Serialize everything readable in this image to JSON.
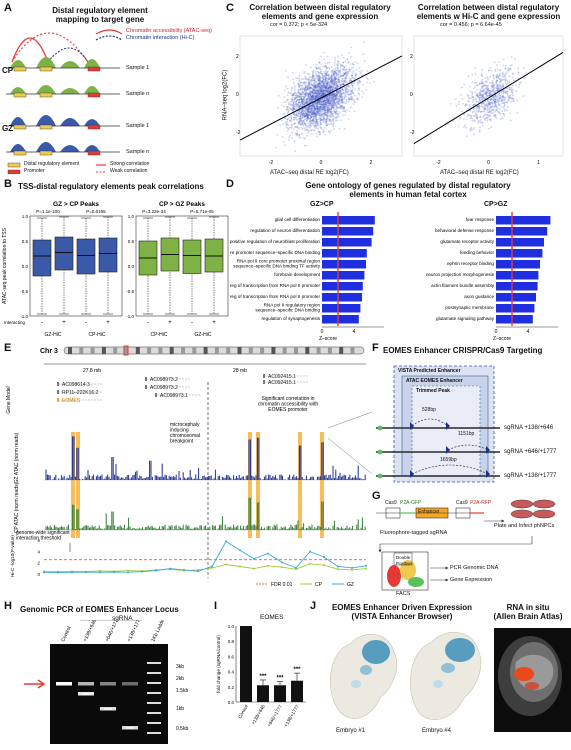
{
  "panel_labels": [
    "A",
    "B",
    "C",
    "D",
    "E",
    "F",
    "G",
    "H",
    "I",
    "J"
  ],
  "panelA": {
    "title": "Distal regulatory element\nmapping to target gene",
    "legend_top": [
      "Chromatin accessibility (ATAC-seq)",
      "Chromatin interaction (Hi-C)"
    ],
    "rows": [
      "CP",
      "GZ"
    ],
    "samples": [
      "Sample 1",
      "Sample n",
      "Sample 1",
      "Sample n"
    ],
    "legend_bottom": [
      "Distal regulatory element",
      "Promoter",
      "Strong correlation",
      "Weak correlation"
    ]
  },
  "panelB": {
    "title": "TSS-distal regulatory elements peak correlations",
    "ylabel": "ATAC-seq peak correlation to TSS",
    "left": {
      "title": "GZ > CP Peaks",
      "pvals": [
        "P=1.1e-100",
        "P=0.0155"
      ],
      "xlabels": [
        "GZ-HiC",
        "CP-HiC"
      ],
      "color": "#3a59a8",
      "boxes": [
        {
          "q1": -0.2,
          "med": 0.2,
          "q3": 0.52,
          "lo": -0.96,
          "hi": 0.96
        },
        {
          "q1": -0.08,
          "med": 0.27,
          "q3": 0.58,
          "lo": -0.96,
          "hi": 0.98
        },
        {
          "q1": -0.16,
          "med": 0.21,
          "q3": 0.54,
          "lo": -0.96,
          "hi": 0.96
        },
        {
          "q1": -0.12,
          "med": 0.25,
          "q3": 0.56,
          "lo": -0.96,
          "hi": 0.98
        }
      ]
    },
    "right": {
      "title": "CP > GZ Peaks",
      "pvals": [
        "P=3.22e-34",
        "P=5.71e-05"
      ],
      "xlabels": [
        "CP-HiC",
        "GZ-HiC"
      ],
      "color": "#7fb245",
      "boxes": [
        {
          "q1": -0.18,
          "med": 0.16,
          "q3": 0.5,
          "lo": -0.96,
          "hi": 0.96
        },
        {
          "q1": -0.1,
          "med": 0.23,
          "q3": 0.56,
          "lo": -0.96,
          "hi": 0.98
        },
        {
          "q1": -0.15,
          "med": 0.21,
          "q3": 0.52,
          "lo": -0.96,
          "hi": 0.96
        },
        {
          "q1": -0.12,
          "med": 0.2,
          "q3": 0.54,
          "lo": -0.96,
          "hi": 0.98
        }
      ]
    },
    "interacting_label": "Interacting",
    "interacting_signs": [
      "-",
      "+",
      "-",
      "+"
    ],
    "yticks": [
      "1.0",
      "0.5",
      "0.0",
      "-0.5",
      "-1.0"
    ]
  },
  "panelC": {
    "left_title": "Correlation between distal regulatory\nelements and gene expression",
    "left_stat": "cor = 0.372; p < 5e-324",
    "right_title": "Correlation between distal regulatory\nelements w Hi-C and gene expression",
    "right_stat": "cor = 0.456; p = 6.64e-45",
    "xlabel": "ATAC–seq distal RE log2(FC)",
    "ylabel": "RNA–seq log2(FC)",
    "left_xticks": [
      "-2",
      "0",
      "2"
    ],
    "left_yticks": [
      "2",
      "0",
      "-2"
    ],
    "right_xticks": [
      "-2",
      "0",
      "1"
    ],
    "right_yticks": [
      "2",
      "0",
      "-2"
    ]
  },
  "panelD": {
    "title": "Gene ontology of genes regulated by distal regulatory\nelements in human fetal cortex",
    "left_header": "GZ>CP",
    "right_header": "CP>GZ",
    "xlabel": "Z–score",
    "xticks": [
      "0",
      "4"
    ],
    "left_terms": [
      "glial cell differentiation",
      "regulation of neuron differentiation",
      "positive regulation of neuroblast proliferation",
      "core promoter sequence–specific DNA binding",
      "RNA pol II core promoter proximal region\nsequence–specific DNA binding TF activity",
      "forebrain development",
      "neg reg of transcription from RNA pol II promoter",
      "pos reg of transcription from RNA pol II promoter",
      "RNA pol II regulatory region\nsequence–specific DNA binding",
      "regulation of synaptogenesis"
    ],
    "left_values": [
      6.6,
      6.4,
      6.2,
      5.6,
      5.5,
      5.3,
      5.1,
      5.0,
      4.8,
      4.6
    ],
    "right_terms": [
      "fear response",
      "behavioral defense response",
      "glutamate receptor activity",
      "feeding behavior",
      "ephrin receptor binding",
      "neuron projection morphogenesis",
      "actin filament bundle assembly",
      "axon guidance",
      "postsynaptic membrane",
      "glutamate signaling pathway"
    ],
    "right_values": [
      6.8,
      6.4,
      6.0,
      5.8,
      5.5,
      5.3,
      5.2,
      5.0,
      4.8,
      4.6
    ]
  },
  "panelE": {
    "chr": "Chr 3",
    "coords": [
      "27.8 mb",
      "28 mb"
    ],
    "tracks": [
      "Gene Model",
      "GZ ATAC\n(norm reads)",
      "CP ATAC\n(norm reads)",
      "Hi-C\n-log10(P-value)"
    ],
    "genes": [
      "AC098614.3",
      "RP11–222K16.2",
      "EOMES",
      "AC098973.2",
      "AC098973.2",
      "AC098973.1",
      "AC092415.1",
      "AC092415.1"
    ],
    "annotations": [
      "Significant correlation in\nchromatin accessibility with\nEOMES promoter",
      "microcephaly\ninducing\nchromosomal\nbreakpoint",
      "genome-wide significant\ninteraction threshold"
    ],
    "hic_yticks": [
      "6",
      "4",
      "2",
      "0"
    ],
    "legend": [
      "FDR 0.01",
      "CP",
      "GZ"
    ],
    "colors": {
      "gz": "#1c2f8c",
      "cp": "#2e7d32",
      "highlight": "#f5a623",
      "hic_cp": "#a3c93a",
      "hic_gz": "#3aa9d9",
      "fdr": "#e53935"
    }
  },
  "panelF": {
    "title": "EOMES Enhancer CRISPR/Cas9 Targeting",
    "boxes": [
      "VISTA Predicted Enhancer",
      "ATAC EOMES Enhancer",
      "Trimmed Peak"
    ],
    "sizes": [
      "528bp",
      "1151bp",
      "1659bp"
    ],
    "sgrnas": [
      "sgRNA +138/+646",
      "sgRNA +646/+1777",
      "sgRNA +138/+1777"
    ]
  },
  "panelG": {
    "labels": [
      "Cas9",
      "P2A-GFP",
      "Enhancer",
      "Cas9",
      "P2A-RFP"
    ],
    "caption_left": "Fluorophore-tagged sgRNA",
    "caption_right": "Plate and Infect phNPCs",
    "facs": "FACS",
    "facs_label": "Double\nPositive",
    "outputs": [
      "PCR Genomic DNA",
      "Gene Expression"
    ]
  },
  "panelH": {
    "title": "Genomic PCR of EOMES Enhancer Locus",
    "sgrna": "sgRNA",
    "lanes": [
      "Control",
      "+138/+646",
      "+646/+1777",
      "+138/+1777",
      "1Kb Ladder"
    ],
    "ladder": [
      "3kb",
      "2kb",
      "1.5kb",
      "1kb",
      "0.5kb"
    ]
  },
  "panelI": {
    "chart_data": {
      "type": "bar",
      "title": "EOMES",
      "categories": [
        "Control",
        "+138/+646",
        "+646/+1777",
        "+138/+1777"
      ],
      "values": [
        1.0,
        0.22,
        0.22,
        0.28
      ],
      "errors": [
        0.0,
        0.07,
        0.05,
        0.1
      ],
      "significance": [
        "",
        "***",
        "***",
        "***"
      ],
      "ylabel": "fold change (sgRNA/control)",
      "ylim": [
        0,
        1.0
      ],
      "yticks": [
        "1.0",
        "0.8",
        "0.6",
        "0.4",
        "0.2",
        "0.0"
      ]
    }
  },
  "panelJ": {
    "title_left": "EOMES Enhancer Driven Expression\n(VISTA Enhancer Browser)",
    "title_right": "RNA in situ\n(Allen Brain Atlas)",
    "embryos": [
      "Embryo #1",
      "Embryo #4"
    ]
  }
}
